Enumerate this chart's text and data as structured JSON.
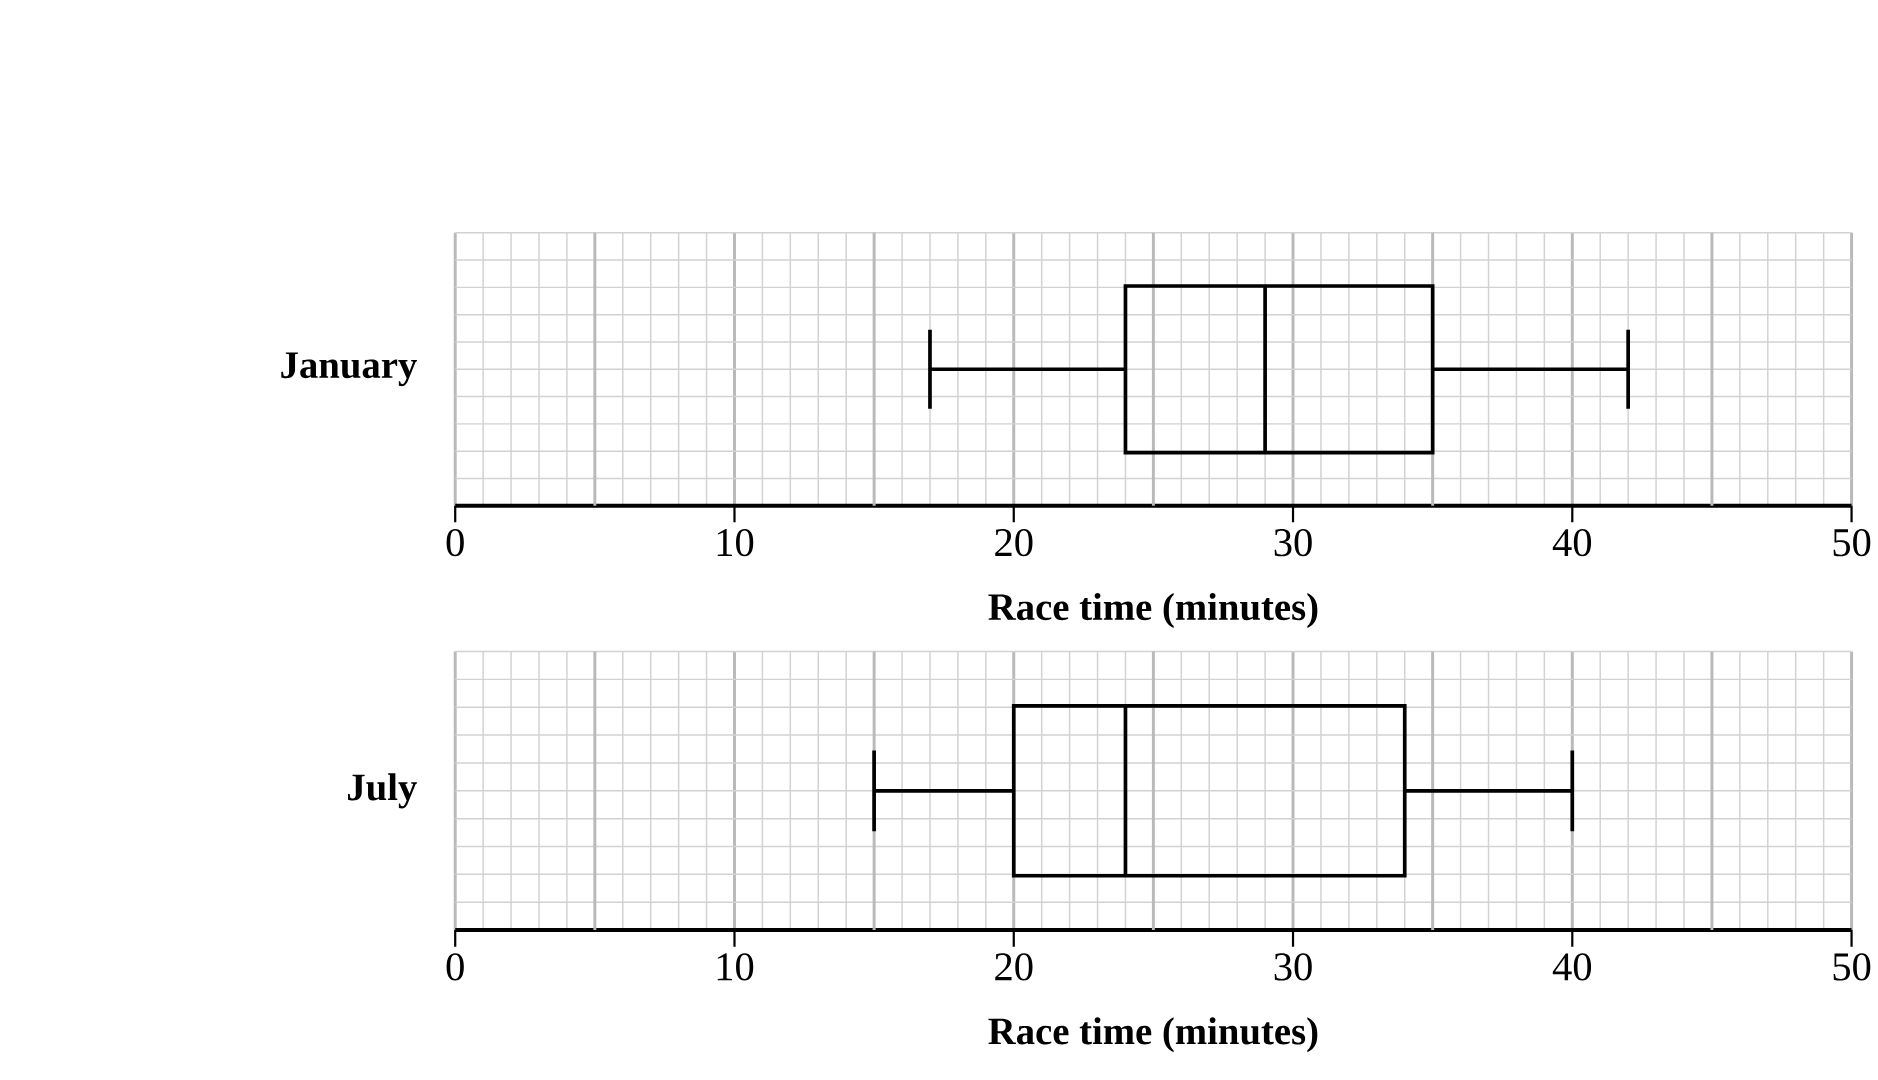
{
  "chart_data": [
    {
      "type": "box",
      "orientation": "horizontal",
      "categories": [
        "January"
      ],
      "boxes": [
        {
          "low": 17,
          "q1": 24,
          "median": 29,
          "q3": 35,
          "high": 42
        }
      ],
      "xlim": [
        0,
        50
      ],
      "xticks": [
        0,
        10,
        20,
        30,
        40,
        50
      ],
      "xlabel": "Race time (minutes)",
      "grid": true
    },
    {
      "type": "box",
      "orientation": "horizontal",
      "categories": [
        "July"
      ],
      "boxes": [
        {
          "low": 15,
          "q1": 20,
          "median": 24,
          "q3": 34,
          "high": 40
        }
      ],
      "xlim": [
        0,
        50
      ],
      "xticks": [
        0,
        10,
        20,
        30,
        40,
        50
      ],
      "xlabel": "Race time (minutes)",
      "grid": true
    }
  ]
}
